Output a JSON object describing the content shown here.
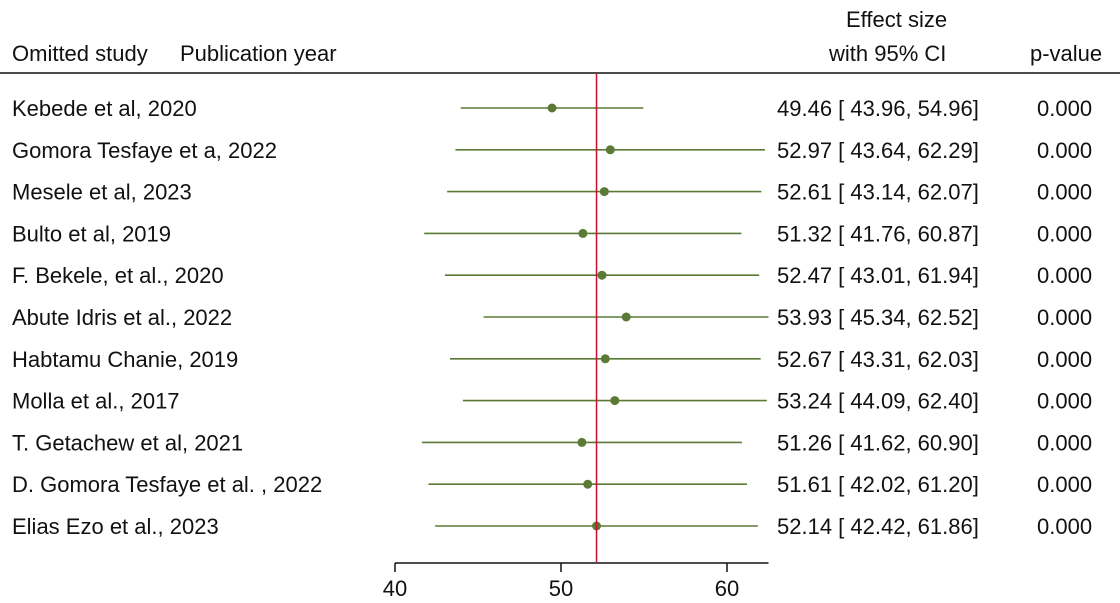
{
  "chart_data": {
    "type": "forest",
    "header": {
      "study_col": "Omitted study",
      "year_col": "Publication year",
      "effect_line1": "Effect size",
      "effect_line2": "with 95% CI",
      "pvalue_col": "p-value"
    },
    "studies": [
      {
        "label": "Kebede et al, 2020",
        "estimate": 49.46,
        "lower": 43.96,
        "upper": 54.96,
        "ci_text": "49.46 [ 43.96,  54.96]",
        "p": "0.000"
      },
      {
        "label": "Gomora Tesfaye et a, 2022",
        "estimate": 52.97,
        "lower": 43.64,
        "upper": 62.29,
        "ci_text": "52.97 [ 43.64,  62.29]",
        "p": "0.000"
      },
      {
        "label": "Mesele et al, 2023",
        "estimate": 52.61,
        "lower": 43.14,
        "upper": 62.07,
        "ci_text": "52.61 [ 43.14,  62.07]",
        "p": "0.000"
      },
      {
        "label": "Bulto et al, 2019",
        "estimate": 51.32,
        "lower": 41.76,
        "upper": 60.87,
        "ci_text": "51.32 [ 41.76,  60.87]",
        "p": "0.000"
      },
      {
        "label": "F. Bekele, et al., 2020",
        "estimate": 52.47,
        "lower": 43.01,
        "upper": 61.94,
        "ci_text": "52.47 [ 43.01,  61.94]",
        "p": "0.000"
      },
      {
        "label": "Abute Idris et al., 2022",
        "estimate": 53.93,
        "lower": 45.34,
        "upper": 62.52,
        "ci_text": "53.93 [ 45.34,  62.52]",
        "p": "0.000"
      },
      {
        "label": "Habtamu Chanie, 2019",
        "estimate": 52.67,
        "lower": 43.31,
        "upper": 62.03,
        "ci_text": "52.67 [ 43.31,  62.03]",
        "p": "0.000"
      },
      {
        "label": "Molla et al., 2017",
        "estimate": 53.24,
        "lower": 44.09,
        "upper": 62.4,
        "ci_text": "53.24 [ 44.09,  62.40]",
        "p": "0.000"
      },
      {
        "label": "T. Getachew et al, 2021",
        "estimate": 51.26,
        "lower": 41.62,
        "upper": 60.9,
        "ci_text": "51.26 [ 41.62,  60.90]",
        "p": "0.000"
      },
      {
        "label": "D. Gomora Tesfaye et al. , 2022",
        "estimate": 51.61,
        "lower": 42.02,
        "upper": 61.2,
        "ci_text": "51.61 [ 42.02,  61.20]",
        "p": "0.000"
      },
      {
        "label": "Elias Ezo et al., 2023",
        "estimate": 52.14,
        "lower": 42.42,
        "upper": 61.86,
        "ci_text": "52.14 [ 42.42,  61.86]",
        "p": "0.000"
      }
    ],
    "reference_line": 52.14,
    "xlim": [
      40,
      62.5
    ],
    "xticks": [
      40,
      50,
      60
    ],
    "colors": {
      "marker": "#5a7a35",
      "ci_line": "#5a7a35",
      "reference": "#c8102e",
      "text": "#111111"
    }
  }
}
